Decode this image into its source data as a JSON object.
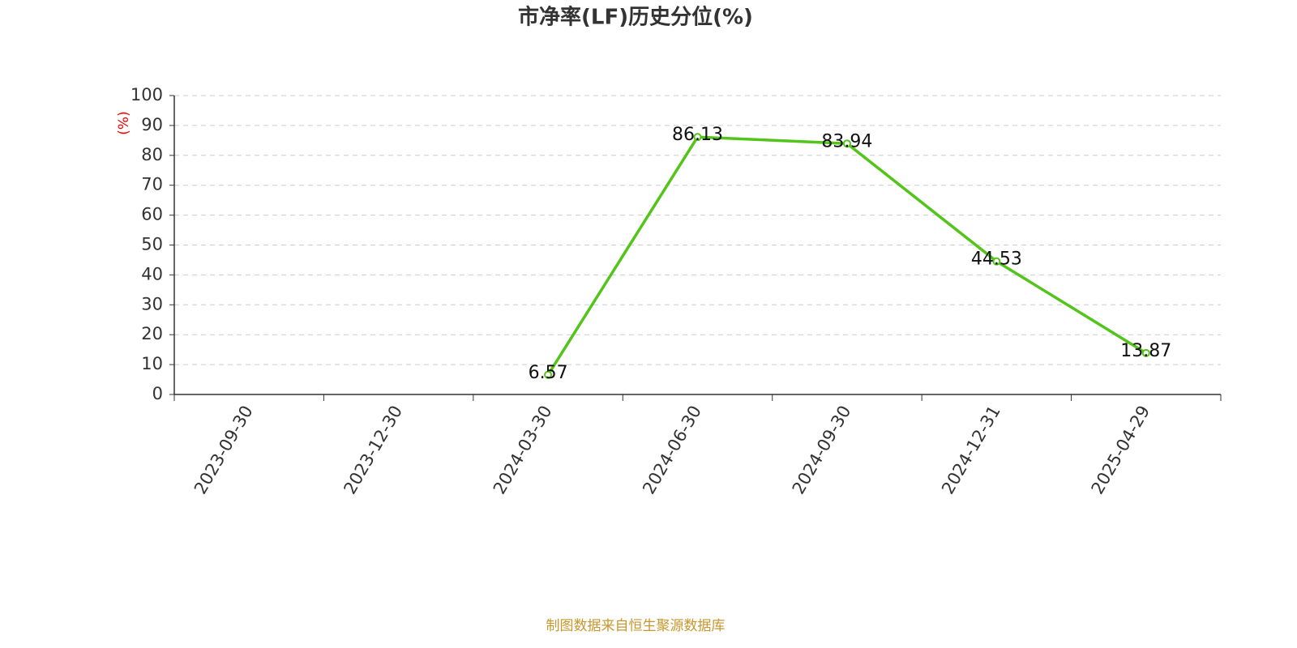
{
  "chart_data": {
    "type": "line",
    "title": "市净率(LF)历史分位(%)",
    "y_label": "(%)",
    "categories": [
      "2023-09-30",
      "2023-12-30",
      "2024-03-30",
      "2024-06-30",
      "2024-09-30",
      "2024-12-31",
      "2025-04-29"
    ],
    "series": [
      {
        "name": "市净率(LF)历史分位",
        "color": "#52c41a",
        "values": [
          null,
          null,
          6.57,
          86.13,
          83.94,
          44.53,
          13.87
        ]
      }
    ],
    "ylim": [
      0,
      100
    ],
    "yticks": [
      0,
      10,
      20,
      30,
      40,
      50,
      60,
      70,
      80,
      90,
      100
    ],
    "grid": true,
    "source": "制图数据来自恒生聚源数据库"
  }
}
